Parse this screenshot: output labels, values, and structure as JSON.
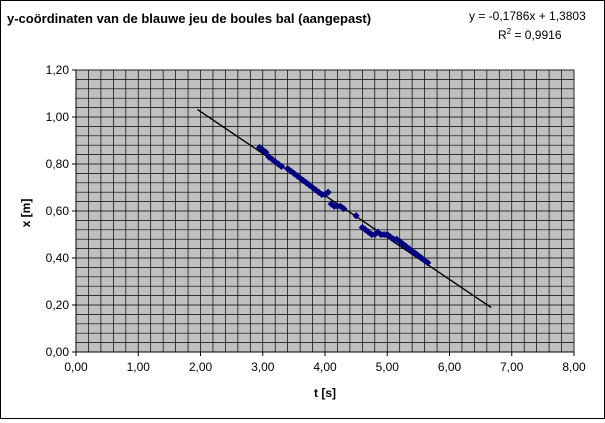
{
  "chart_data": {
    "type": "scatter",
    "title": "y-coördinaten van de blauwe jeu de boules bal (aangepast)",
    "xlabel": "t [s]",
    "ylabel": "x [m]",
    "xlim": [
      0,
      8
    ],
    "ylim": [
      0,
      1.2
    ],
    "x_ticks": [
      "0,00",
      "1,00",
      "2,00",
      "3,00",
      "4,00",
      "5,00",
      "6,00",
      "7,00",
      "8,00"
    ],
    "y_ticks": [
      "0,00",
      "0,20",
      "0,40",
      "0,60",
      "0,80",
      "1,00",
      "1,20"
    ],
    "grid": true,
    "plot_background": "#c0c0c0",
    "point_color": "#000080",
    "trendline": {
      "equation": "y = -0,1786x + 1,3803",
      "r2_prefix": "R",
      "r2_exp": "2",
      "r2_value": " = 0,9916",
      "x_range": [
        1.95,
        6.67
      ],
      "slope": -0.1786,
      "intercept": 1.3803,
      "color": "#000000"
    },
    "series": [
      {
        "values": [
          {
            "x": 2.95,
            "y": 0.87
          },
          {
            "x": 3.0,
            "y": 0.86
          },
          {
            "x": 3.05,
            "y": 0.85
          },
          {
            "x": 3.1,
            "y": 0.83
          },
          {
            "x": 3.15,
            "y": 0.82
          },
          {
            "x": 3.2,
            "y": 0.81
          },
          {
            "x": 3.25,
            "y": 0.8
          },
          {
            "x": 3.3,
            "y": 0.79
          },
          {
            "x": 3.4,
            "y": 0.78
          },
          {
            "x": 3.45,
            "y": 0.77
          },
          {
            "x": 3.5,
            "y": 0.76
          },
          {
            "x": 3.55,
            "y": 0.75
          },
          {
            "x": 3.6,
            "y": 0.74
          },
          {
            "x": 3.65,
            "y": 0.73
          },
          {
            "x": 3.7,
            "y": 0.72
          },
          {
            "x": 3.75,
            "y": 0.71
          },
          {
            "x": 3.8,
            "y": 0.7
          },
          {
            "x": 3.85,
            "y": 0.69
          },
          {
            "x": 3.9,
            "y": 0.68
          },
          {
            "x": 3.95,
            "y": 0.67
          },
          {
            "x": 4.0,
            "y": 0.67
          },
          {
            "x": 4.05,
            "y": 0.68
          },
          {
            "x": 4.1,
            "y": 0.63
          },
          {
            "x": 4.15,
            "y": 0.62
          },
          {
            "x": 4.2,
            "y": 0.62
          },
          {
            "x": 4.25,
            "y": 0.62
          },
          {
            "x": 4.3,
            "y": 0.61
          },
          {
            "x": 4.5,
            "y": 0.58
          },
          {
            "x": 4.6,
            "y": 0.53
          },
          {
            "x": 4.65,
            "y": 0.52
          },
          {
            "x": 4.7,
            "y": 0.51
          },
          {
            "x": 4.75,
            "y": 0.5
          },
          {
            "x": 4.8,
            "y": 0.5
          },
          {
            "x": 4.85,
            "y": 0.51
          },
          {
            "x": 4.9,
            "y": 0.5
          },
          {
            "x": 4.95,
            "y": 0.5
          },
          {
            "x": 5.0,
            "y": 0.5
          },
          {
            "x": 5.05,
            "y": 0.49
          },
          {
            "x": 5.1,
            "y": 0.48
          },
          {
            "x": 5.15,
            "y": 0.48
          },
          {
            "x": 5.2,
            "y": 0.47
          },
          {
            "x": 5.25,
            "y": 0.46
          },
          {
            "x": 5.3,
            "y": 0.45
          },
          {
            "x": 5.35,
            "y": 0.44
          },
          {
            "x": 5.4,
            "y": 0.43
          },
          {
            "x": 5.45,
            "y": 0.42
          },
          {
            "x": 5.5,
            "y": 0.41
          },
          {
            "x": 5.55,
            "y": 0.4
          },
          {
            "x": 5.6,
            "y": 0.39
          },
          {
            "x": 5.65,
            "y": 0.38
          }
        ]
      }
    ]
  }
}
